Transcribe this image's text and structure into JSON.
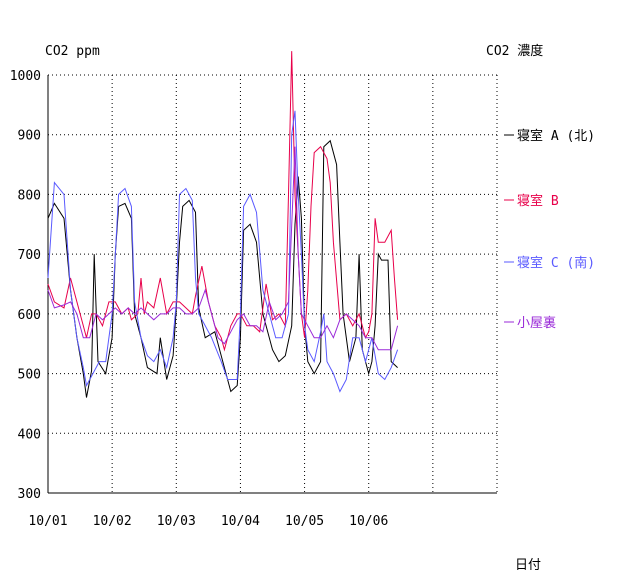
{
  "chart_data": {
    "type": "line",
    "title": "CO2 濃度",
    "ylabel": "CO2 ppm",
    "xlabel": "日付",
    "ylim": [
      300,
      1000
    ],
    "xlim": [
      0,
      7
    ],
    "y_ticks": [
      300,
      400,
      500,
      600,
      700,
      800,
      900,
      1000
    ],
    "x_ticks": [
      {
        "x": 0,
        "label": "10/01"
      },
      {
        "x": 1,
        "label": "10/02"
      },
      {
        "x": 2,
        "label": "10/03"
      },
      {
        "x": 3,
        "label": "10/04"
      },
      {
        "x": 4,
        "label": "10/05"
      },
      {
        "x": 5,
        "label": "10/06"
      }
    ],
    "grid": true,
    "legend_position": "right",
    "series": [
      {
        "name": "寝室 A (北)",
        "color": "#000000",
        "points": [
          [
            0.0,
            760
          ],
          [
            0.1,
            785
          ],
          [
            0.25,
            760
          ],
          [
            0.35,
            640
          ],
          [
            0.45,
            560
          ],
          [
            0.55,
            500
          ],
          [
            0.6,
            460
          ],
          [
            0.68,
            505
          ],
          [
            0.72,
            700
          ],
          [
            0.78,
            520
          ],
          [
            0.9,
            500
          ],
          [
            1.0,
            560
          ],
          [
            1.05,
            700
          ],
          [
            1.1,
            780
          ],
          [
            1.2,
            785
          ],
          [
            1.3,
            760
          ],
          [
            1.35,
            600
          ],
          [
            1.45,
            560
          ],
          [
            1.55,
            510
          ],
          [
            1.7,
            500
          ],
          [
            1.75,
            560
          ],
          [
            1.85,
            490
          ],
          [
            1.95,
            530
          ],
          [
            2.0,
            610
          ],
          [
            2.05,
            720
          ],
          [
            2.1,
            780
          ],
          [
            2.2,
            790
          ],
          [
            2.3,
            770
          ],
          [
            2.35,
            610
          ],
          [
            2.45,
            560
          ],
          [
            2.6,
            570
          ],
          [
            2.75,
            510
          ],
          [
            2.85,
            470
          ],
          [
            2.95,
            480
          ],
          [
            3.0,
            560
          ],
          [
            3.05,
            740
          ],
          [
            3.15,
            750
          ],
          [
            3.25,
            720
          ],
          [
            3.35,
            600
          ],
          [
            3.5,
            540
          ],
          [
            3.6,
            520
          ],
          [
            3.7,
            530
          ],
          [
            3.8,
            580
          ],
          [
            3.85,
            750
          ],
          [
            3.9,
            830
          ],
          [
            3.95,
            760
          ],
          [
            4.0,
            580
          ],
          [
            4.05,
            520
          ],
          [
            4.15,
            500
          ],
          [
            4.25,
            520
          ],
          [
            4.3,
            880
          ],
          [
            4.4,
            890
          ],
          [
            4.5,
            850
          ],
          [
            4.55,
            720
          ],
          [
            4.6,
            600
          ],
          [
            4.7,
            520
          ],
          [
            4.8,
            560
          ],
          [
            4.85,
            700
          ],
          [
            4.9,
            540
          ],
          [
            5.0,
            500
          ],
          [
            5.05,
            520
          ],
          [
            5.1,
            580
          ],
          [
            5.15,
            700
          ],
          [
            5.2,
            690
          ],
          [
            5.3,
            690
          ],
          [
            5.35,
            520
          ],
          [
            5.45,
            510
          ]
        ]
      },
      {
        "name": "寝室 B",
        "color": "#e8004a",
        "points": [
          [
            0.0,
            650
          ],
          [
            0.1,
            620
          ],
          [
            0.25,
            610
          ],
          [
            0.35,
            660
          ],
          [
            0.45,
            620
          ],
          [
            0.55,
            580
          ],
          [
            0.6,
            560
          ],
          [
            0.68,
            600
          ],
          [
            0.75,
            600
          ],
          [
            0.85,
            580
          ],
          [
            0.95,
            620
          ],
          [
            1.05,
            620
          ],
          [
            1.15,
            600
          ],
          [
            1.25,
            610
          ],
          [
            1.3,
            590
          ],
          [
            1.4,
            600
          ],
          [
            1.45,
            660
          ],
          [
            1.5,
            600
          ],
          [
            1.55,
            620
          ],
          [
            1.65,
            610
          ],
          [
            1.75,
            660
          ],
          [
            1.85,
            600
          ],
          [
            1.95,
            620
          ],
          [
            2.05,
            620
          ],
          [
            2.15,
            610
          ],
          [
            2.25,
            600
          ],
          [
            2.3,
            630
          ],
          [
            2.4,
            680
          ],
          [
            2.5,
            620
          ],
          [
            2.6,
            580
          ],
          [
            2.7,
            560
          ],
          [
            2.75,
            540
          ],
          [
            2.85,
            580
          ],
          [
            2.95,
            600
          ],
          [
            3.0,
            600
          ],
          [
            3.1,
            580
          ],
          [
            3.2,
            580
          ],
          [
            3.3,
            570
          ],
          [
            3.4,
            650
          ],
          [
            3.5,
            590
          ],
          [
            3.6,
            600
          ],
          [
            3.7,
            580
          ],
          [
            3.75,
            800
          ],
          [
            3.8,
            1040
          ],
          [
            3.85,
            800
          ],
          [
            3.9,
            700
          ],
          [
            3.95,
            600
          ],
          [
            4.0,
            560
          ],
          [
            4.05,
            640
          ],
          [
            4.1,
            780
          ],
          [
            4.15,
            870
          ],
          [
            4.25,
            880
          ],
          [
            4.35,
            860
          ],
          [
            4.4,
            820
          ],
          [
            4.45,
            720
          ],
          [
            4.55,
            590
          ],
          [
            4.65,
            600
          ],
          [
            4.75,
            580
          ],
          [
            4.85,
            600
          ],
          [
            4.95,
            560
          ],
          [
            5.0,
            570
          ],
          [
            5.05,
            600
          ],
          [
            5.1,
            760
          ],
          [
            5.15,
            720
          ],
          [
            5.25,
            720
          ],
          [
            5.35,
            740
          ],
          [
            5.4,
            660
          ],
          [
            5.45,
            590
          ]
        ]
      },
      {
        "name": "寝室 C (南)",
        "color": "#5a5aff",
        "points": [
          [
            0.0,
            660
          ],
          [
            0.1,
            820
          ],
          [
            0.25,
            800
          ],
          [
            0.35,
            640
          ],
          [
            0.45,
            560
          ],
          [
            0.55,
            510
          ],
          [
            0.6,
            480
          ],
          [
            0.7,
            500
          ],
          [
            0.8,
            520
          ],
          [
            0.9,
            520
          ],
          [
            1.0,
            600
          ],
          [
            1.05,
            700
          ],
          [
            1.1,
            800
          ],
          [
            1.2,
            810
          ],
          [
            1.3,
            780
          ],
          [
            1.35,
            620
          ],
          [
            1.45,
            560
          ],
          [
            1.55,
            530
          ],
          [
            1.65,
            520
          ],
          [
            1.75,
            540
          ],
          [
            1.85,
            510
          ],
          [
            1.95,
            560
          ],
          [
            2.0,
            620
          ],
          [
            2.05,
            800
          ],
          [
            2.15,
            810
          ],
          [
            2.25,
            790
          ],
          [
            2.3,
            660
          ],
          [
            2.35,
            600
          ],
          [
            2.45,
            580
          ],
          [
            2.55,
            560
          ],
          [
            2.7,
            520
          ],
          [
            2.8,
            490
          ],
          [
            2.95,
            490
          ],
          [
            3.0,
            600
          ],
          [
            3.05,
            780
          ],
          [
            3.15,
            800
          ],
          [
            3.25,
            770
          ],
          [
            3.35,
            640
          ],
          [
            3.45,
            600
          ],
          [
            3.55,
            560
          ],
          [
            3.65,
            560
          ],
          [
            3.75,
            600
          ],
          [
            3.8,
            900
          ],
          [
            3.85,
            940
          ],
          [
            3.9,
            800
          ],
          [
            3.95,
            700
          ],
          [
            4.0,
            580
          ],
          [
            4.05,
            540
          ],
          [
            4.15,
            520
          ],
          [
            4.25,
            570
          ],
          [
            4.3,
            600
          ],
          [
            4.35,
            520
          ],
          [
            4.45,
            500
          ],
          [
            4.55,
            470
          ],
          [
            4.65,
            490
          ],
          [
            4.75,
            560
          ],
          [
            4.85,
            560
          ],
          [
            4.95,
            520
          ],
          [
            5.05,
            560
          ],
          [
            5.15,
            500
          ],
          [
            5.25,
            490
          ],
          [
            5.35,
            510
          ],
          [
            5.45,
            540
          ]
        ]
      },
      {
        "name": "小屋裏",
        "color": "#9a2ad8",
        "points": [
          [
            0.0,
            640
          ],
          [
            0.1,
            610
          ],
          [
            0.25,
            615
          ],
          [
            0.35,
            620
          ],
          [
            0.45,
            600
          ],
          [
            0.55,
            560
          ],
          [
            0.65,
            560
          ],
          [
            0.75,
            600
          ],
          [
            0.85,
            590
          ],
          [
            0.95,
            600
          ],
          [
            1.05,
            610
          ],
          [
            1.15,
            600
          ],
          [
            1.25,
            610
          ],
          [
            1.35,
            600
          ],
          [
            1.45,
            610
          ],
          [
            1.55,
            600
          ],
          [
            1.65,
            590
          ],
          [
            1.75,
            600
          ],
          [
            1.85,
            600
          ],
          [
            1.95,
            610
          ],
          [
            2.05,
            610
          ],
          [
            2.15,
            600
          ],
          [
            2.25,
            600
          ],
          [
            2.35,
            610
          ],
          [
            2.45,
            640
          ],
          [
            2.55,
            600
          ],
          [
            2.65,
            560
          ],
          [
            2.75,
            550
          ],
          [
            2.85,
            570
          ],
          [
            2.95,
            590
          ],
          [
            3.05,
            600
          ],
          [
            3.15,
            580
          ],
          [
            3.25,
            580
          ],
          [
            3.35,
            570
          ],
          [
            3.45,
            620
          ],
          [
            3.55,
            590
          ],
          [
            3.65,
            600
          ],
          [
            3.75,
            620
          ],
          [
            3.85,
            880
          ],
          [
            3.9,
            700
          ],
          [
            3.95,
            600
          ],
          [
            4.05,
            580
          ],
          [
            4.15,
            560
          ],
          [
            4.25,
            560
          ],
          [
            4.35,
            580
          ],
          [
            4.45,
            560
          ],
          [
            4.55,
            590
          ],
          [
            4.65,
            600
          ],
          [
            4.75,
            590
          ],
          [
            4.85,
            580
          ],
          [
            4.95,
            560
          ],
          [
            5.05,
            560
          ],
          [
            5.15,
            540
          ],
          [
            5.25,
            540
          ],
          [
            5.35,
            540
          ],
          [
            5.45,
            580
          ]
        ]
      }
    ]
  }
}
